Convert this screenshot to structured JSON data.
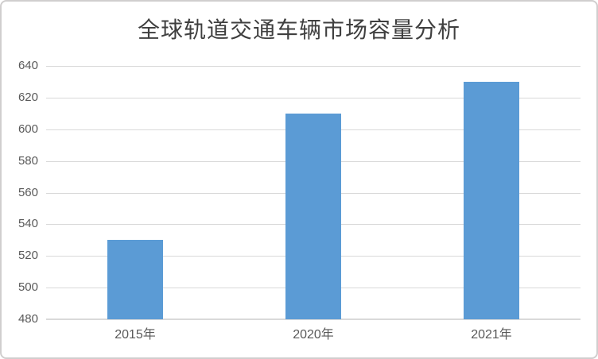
{
  "chart_data": {
    "type": "bar",
    "title": "全球轨道交通车辆市场容量分析",
    "categories": [
      "2015年",
      "2020年",
      "2021年"
    ],
    "values": [
      530,
      610,
      630
    ],
    "xlabel": "",
    "ylabel": "",
    "ylim": [
      480,
      640
    ],
    "ytick_step": 20,
    "yticks": [
      480,
      500,
      520,
      540,
      560,
      580,
      600,
      620,
      640
    ],
    "grid": true,
    "legend_position": "none",
    "bar_color": "#5B9BD5"
  },
  "colors": {
    "bar": "#5B9BD5",
    "gridline": "#D9D9D9",
    "axis_line": "#D9D9D9",
    "title_text": "#3F3F3F",
    "axis_text": "#595959",
    "border": "#D0CECE",
    "background": "#FFFFFF"
  }
}
